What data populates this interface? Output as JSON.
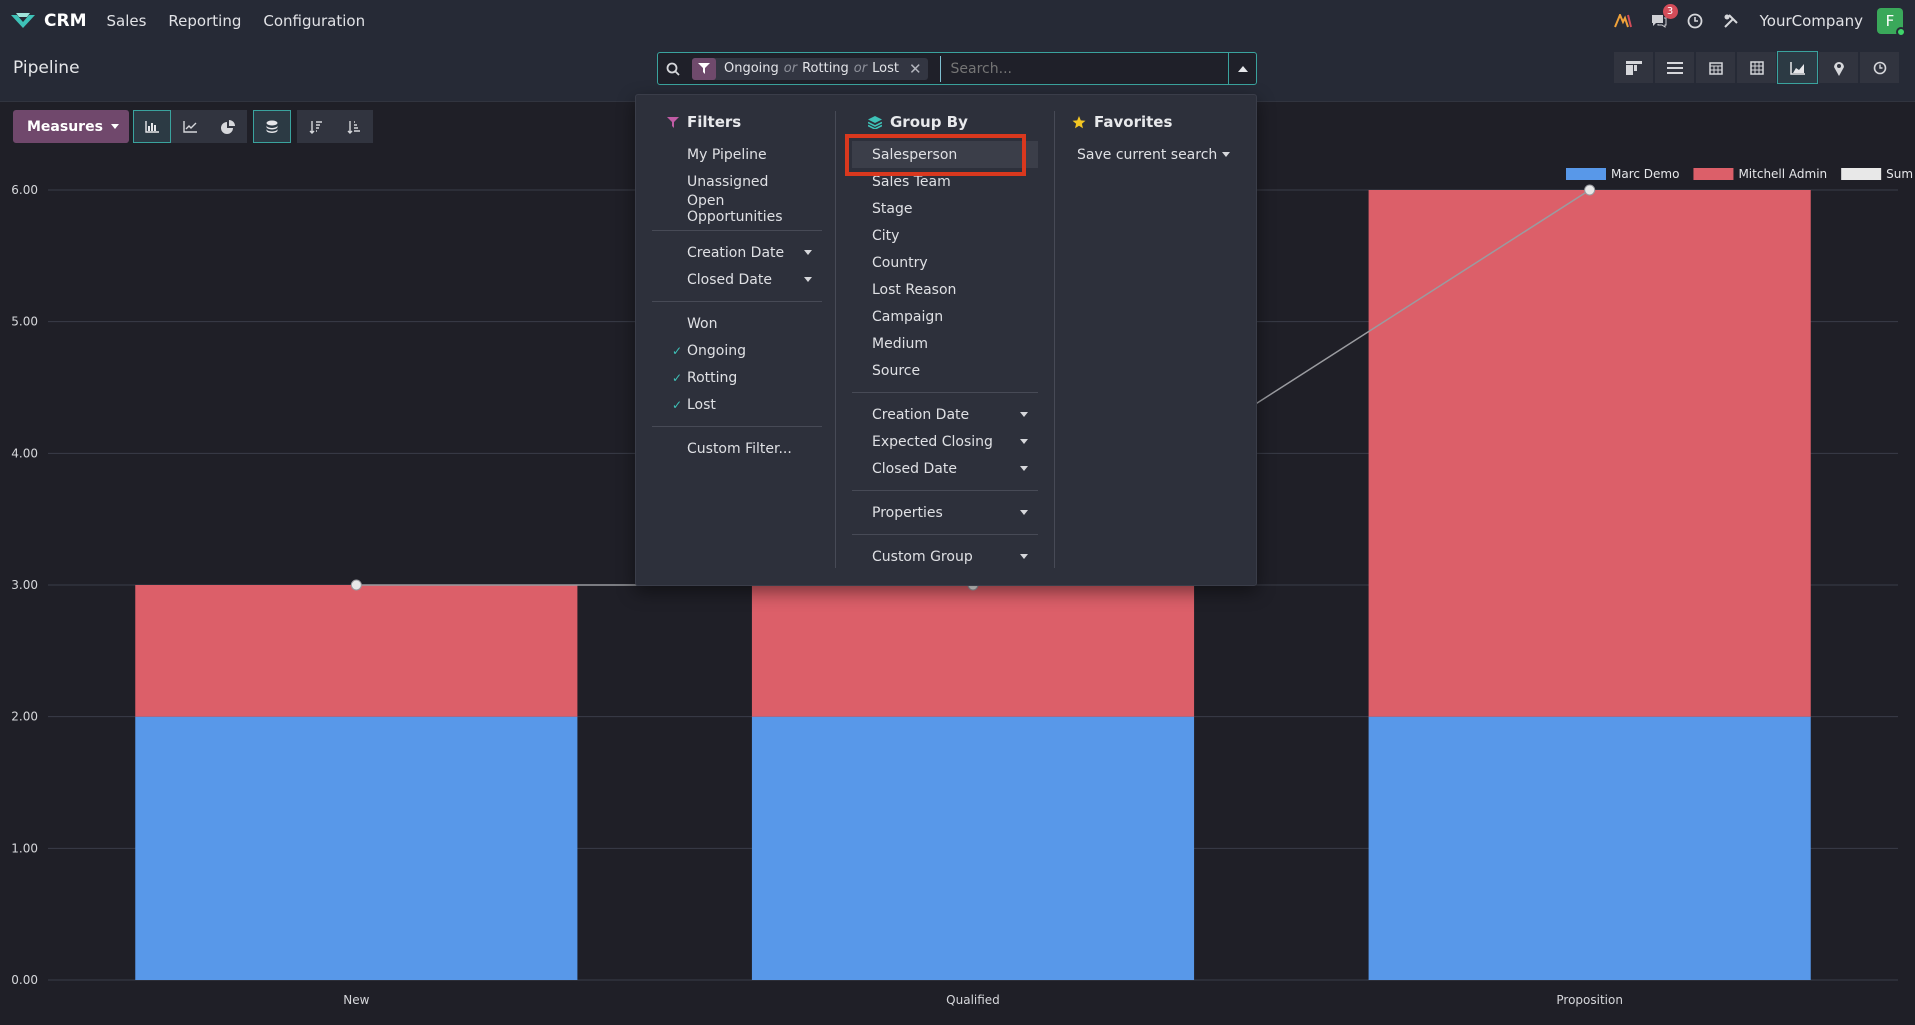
{
  "navbar": {
    "app_name": "CRM",
    "menu": [
      "Sales",
      "Reporting",
      "Configuration"
    ],
    "messages_count": "3",
    "company": "YourCompany",
    "avatar_initial": "F"
  },
  "control_panel": {
    "title": "Pipeline",
    "search": {
      "facet_values": [
        "Ongoing",
        "Rotting",
        "Lost"
      ],
      "facet_separator": "or",
      "placeholder": "Search..."
    }
  },
  "toolbar": {
    "measures_label": "Measures"
  },
  "dropdown": {
    "filters": {
      "title": "Filters",
      "group1": [
        "My Pipeline",
        "Unassigned",
        "Open Opportunities"
      ],
      "group2": [
        "Creation Date",
        "Closed Date"
      ],
      "group3": [
        {
          "label": "Won",
          "checked": false
        },
        {
          "label": "Ongoing",
          "checked": true
        },
        {
          "label": "Rotting",
          "checked": true
        },
        {
          "label": "Lost",
          "checked": true
        }
      ],
      "custom": "Custom Filter..."
    },
    "group_by": {
      "title": "Group By",
      "group1": [
        "Salesperson",
        "Sales Team",
        "Stage",
        "City",
        "Country",
        "Lost Reason",
        "Campaign",
        "Medium",
        "Source"
      ],
      "group2": [
        "Creation Date",
        "Expected Closing",
        "Closed Date"
      ],
      "properties": "Properties",
      "custom": "Custom Group"
    },
    "favorites": {
      "title": "Favorites",
      "save_search": "Save current search"
    }
  },
  "colors": {
    "marc": "#5898e9",
    "mitchell": "#dc5f69",
    "sum": "#e8e8e8",
    "accent": "#3aa39e"
  },
  "chart_data": {
    "type": "bar",
    "stacked": true,
    "categories": [
      "New",
      "Qualified",
      "Proposition"
    ],
    "series": [
      {
        "name": "Marc Demo",
        "values": [
          2,
          2,
          2
        ]
      },
      {
        "name": "Mitchell Admin",
        "values": [
          1,
          1,
          4
        ]
      }
    ],
    "sum_line": {
      "name": "Sum",
      "values": [
        3,
        3,
        6
      ]
    },
    "ylim": [
      0,
      6
    ],
    "yticks": [
      "0.00",
      "1.00",
      "2.00",
      "3.00",
      "4.00",
      "5.00",
      "6.00"
    ],
    "legend_position": "top-right",
    "grid": true
  }
}
